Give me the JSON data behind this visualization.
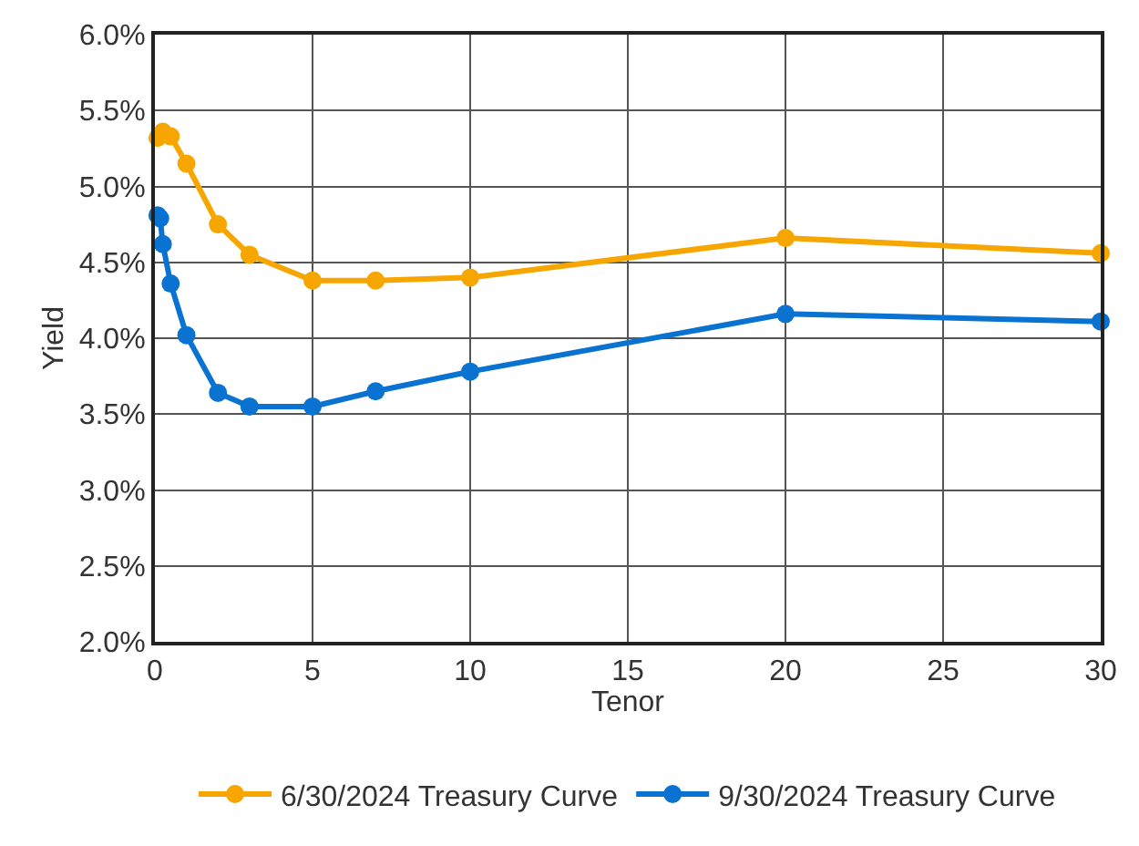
{
  "chart_data": {
    "type": "line",
    "xlabel": "Tenor",
    "ylabel": "Yield",
    "xlim": [
      0,
      30
    ],
    "xticks": [
      0,
      5,
      10,
      15,
      20,
      25,
      30
    ],
    "ylim": [
      2,
      6
    ],
    "yticks": [
      {
        "value": 2,
        "label": "2.0%"
      },
      {
        "value": 2.5,
        "label": "2.5%"
      },
      {
        "value": 3,
        "label": "3.0%"
      },
      {
        "value": 3.5,
        "label": "3.5%"
      },
      {
        "value": 4,
        "label": "4.0%"
      },
      {
        "value": 4.5,
        "label": "4.5%"
      },
      {
        "value": 5,
        "label": "5.0%"
      },
      {
        "value": 5.5,
        "label": "5.5%"
      },
      {
        "value": 6,
        "label": "6.0%"
      }
    ],
    "grid": true,
    "legend": "bottom",
    "marker": "circle",
    "line_style": "solid",
    "series": [
      {
        "name": "6/30/2024 Treasury Curve",
        "color": "#f7a600",
        "x": [
          0.083,
          0.25,
          0.5,
          1,
          2,
          3,
          5,
          7,
          10,
          20,
          30
        ],
        "values": [
          5.32,
          5.36,
          5.33,
          5.15,
          4.75,
          4.55,
          4.38,
          4.38,
          4.4,
          4.66,
          4.56
        ]
      },
      {
        "name": "9/30/2024 Treasury Curve",
        "color": "#0a72d0",
        "x": [
          0.083,
          0.167,
          0.25,
          0.5,
          1,
          2,
          3,
          5,
          7,
          10,
          20,
          30
        ],
        "values": [
          4.81,
          4.79,
          4.62,
          4.36,
          4.02,
          3.64,
          3.55,
          3.55,
          3.65,
          3.78,
          4.16,
          4.11
        ]
      }
    ]
  }
}
